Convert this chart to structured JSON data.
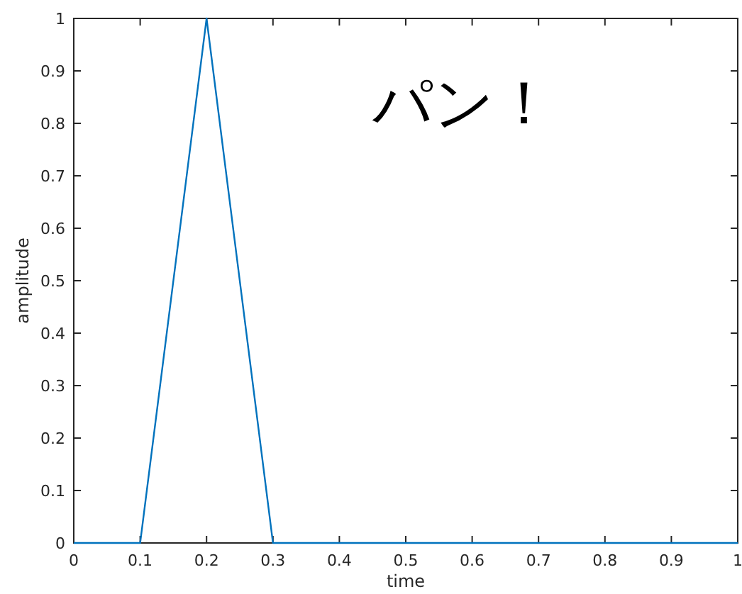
{
  "chart_data": {
    "type": "line",
    "xlabel": "time",
    "ylabel": "amplitude",
    "x": [
      0,
      0.1,
      0.2,
      0.3,
      1
    ],
    "series": [
      {
        "color": "#0072bd",
        "values": [
          0,
          0,
          1,
          0,
          0
        ]
      }
    ],
    "xlim": [
      0,
      1
    ],
    "ylim": [
      0,
      1
    ],
    "xticks": [
      0,
      0.1,
      0.2,
      0.3,
      0.4,
      0.5,
      0.6,
      0.7,
      0.8,
      0.9,
      1
    ],
    "yticks": [
      0,
      0.1,
      0.2,
      0.3,
      0.4,
      0.5,
      0.6,
      0.7,
      0.8,
      0.9,
      1
    ],
    "grid": false,
    "annotations": [
      "パン！"
    ]
  }
}
